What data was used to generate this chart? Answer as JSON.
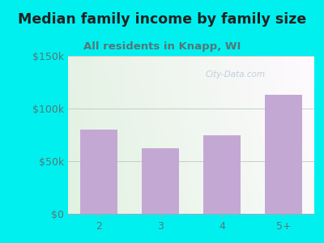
{
  "title": "Median family income by family size",
  "subtitle": "All residents in Knapp, WI",
  "categories": [
    "2",
    "3",
    "4",
    "5+"
  ],
  "values": [
    80000,
    62000,
    75000,
    113000
  ],
  "bar_color": "#c4a8d4",
  "background_outer": "#00f0f0",
  "background_inner_topleft": "#d8eed8",
  "background_inner_topright": "#e8e8e8",
  "background_inner_bottom": "#f0faf0",
  "title_color": "#222222",
  "subtitle_color": "#557777",
  "axis_label_color": "#557777",
  "ytick_labels": [
    "$0",
    "$50k",
    "$100k",
    "$150k"
  ],
  "ytick_values": [
    0,
    50000,
    100000,
    150000
  ],
  "ylim": [
    0,
    150000
  ],
  "title_fontsize": 12.5,
  "subtitle_fontsize": 9.5,
  "tick_fontsize": 9,
  "watermark": "City-Data.com"
}
